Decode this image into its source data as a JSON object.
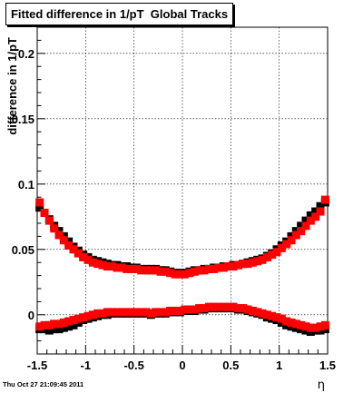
{
  "title": "Fitted difference in 1/pT  Global Tracks",
  "timestamp": "Thu Oct 27 21:09:45 2011",
  "chart_data": {
    "type": "scatter",
    "title": "Fitted difference in 1/pT  Global Tracks",
    "xlabel": "η",
    "ylabel": "difference in 1/pT",
    "xlim": [
      -1.5,
      1.5
    ],
    "ylim": [
      -0.03,
      0.22
    ],
    "x_ticks": [
      -1.5,
      -1,
      -0.5,
      0,
      0.5,
      1,
      1.5
    ],
    "x_tick_labels": [
      "-1.5",
      "-1",
      "-0.5",
      "0",
      "0.5",
      "1",
      "1.5"
    ],
    "y_ticks": [
      0,
      0.05,
      0.1,
      0.15,
      0.2
    ],
    "y_tick_labels": [
      "0",
      "0.05",
      "0.1",
      "0.15",
      "0.2"
    ],
    "grid": true,
    "series": [
      {
        "color": "#000000",
        "x": [
          -1.475,
          -1.425,
          -1.375,
          -1.325,
          -1.275,
          -1.225,
          -1.175,
          -1.125,
          -1.075,
          -1.025,
          -0.975,
          -0.925,
          -0.875,
          -0.825,
          -0.775,
          -0.725,
          -0.675,
          -0.625,
          -0.575,
          -0.525,
          -0.475,
          -0.425,
          -0.375,
          -0.325,
          -0.275,
          -0.225,
          -0.175,
          -0.125,
          -0.075,
          -0.025,
          0.025,
          0.075,
          0.125,
          0.175,
          0.225,
          0.275,
          0.325,
          0.375,
          0.425,
          0.475,
          0.525,
          0.575,
          0.625,
          0.675,
          0.725,
          0.775,
          0.825,
          0.875,
          0.925,
          0.975,
          1.025,
          1.075,
          1.125,
          1.175,
          1.225,
          1.275,
          1.325,
          1.375,
          1.425,
          1.475
        ],
        "values": [
          0.082,
          0.078,
          0.073,
          0.068,
          0.064,
          0.06,
          0.056,
          0.052,
          0.049,
          0.046,
          0.044,
          0.042,
          0.041,
          0.04,
          0.039,
          0.038,
          0.038,
          0.037,
          0.037,
          0.036,
          0.036,
          0.035,
          0.035,
          0.035,
          0.035,
          0.034,
          0.034,
          0.033,
          0.032,
          0.032,
          0.032,
          0.033,
          0.034,
          0.034,
          0.035,
          0.035,
          0.036,
          0.036,
          0.037,
          0.037,
          0.038,
          0.038,
          0.039,
          0.04,
          0.041,
          0.042,
          0.043,
          0.045,
          0.047,
          0.05,
          0.053,
          0.056,
          0.06,
          0.064,
          0.068,
          0.072,
          0.076,
          0.079,
          0.083,
          0.086
        ]
      },
      {
        "color": "#000000",
        "x": [
          -1.475,
          -1.425,
          -1.375,
          -1.325,
          -1.275,
          -1.225,
          -1.175,
          -1.125,
          -1.075,
          -1.025,
          -0.975,
          -0.925,
          -0.875,
          -0.825,
          -0.775,
          -0.725,
          -0.675,
          -0.625,
          -0.575,
          -0.525,
          -0.475,
          -0.425,
          -0.375,
          -0.325,
          -0.275,
          -0.225,
          -0.175,
          -0.125,
          -0.075,
          -0.025,
          0.025,
          0.075,
          0.125,
          0.175,
          0.225,
          0.275,
          0.325,
          0.375,
          0.425,
          0.475,
          0.525,
          0.575,
          0.625,
          0.675,
          0.725,
          0.775,
          0.825,
          0.875,
          0.925,
          0.975,
          1.025,
          1.075,
          1.125,
          1.175,
          1.225,
          1.275,
          1.325,
          1.375,
          1.425,
          1.475
        ],
        "values": [
          -0.011,
          -0.011,
          -0.012,
          -0.011,
          -0.011,
          -0.01,
          -0.009,
          -0.008,
          -0.006,
          -0.004,
          -0.003,
          -0.002,
          -0.001,
          0.0,
          0.0,
          0.001,
          0.001,
          0.001,
          0.001,
          0.001,
          0.001,
          0.001,
          0.001,
          0.0,
          0.001,
          0.001,
          0.001,
          0.002,
          0.002,
          0.002,
          0.003,
          0.003,
          0.003,
          0.004,
          0.004,
          0.005,
          0.005,
          0.005,
          0.005,
          0.005,
          0.005,
          0.004,
          0.004,
          0.003,
          0.002,
          0.001,
          0.0,
          -0.002,
          -0.003,
          -0.004,
          -0.006,
          -0.008,
          -0.009,
          -0.01,
          -0.011,
          -0.012,
          -0.013,
          -0.012,
          -0.012,
          -0.011
        ]
      },
      {
        "color": "#ff0000",
        "x": [
          -1.475,
          -1.425,
          -1.375,
          -1.325,
          -1.275,
          -1.225,
          -1.175,
          -1.125,
          -1.075,
          -1.025,
          -0.975,
          -0.925,
          -0.875,
          -0.825,
          -0.775,
          -0.725,
          -0.675,
          -0.625,
          -0.575,
          -0.525,
          -0.475,
          -0.425,
          -0.375,
          -0.325,
          -0.275,
          -0.225,
          -0.175,
          -0.125,
          -0.075,
          -0.025,
          0.025,
          0.075,
          0.125,
          0.175,
          0.225,
          0.275,
          0.325,
          0.375,
          0.425,
          0.475,
          0.525,
          0.575,
          0.625,
          0.675,
          0.725,
          0.775,
          0.825,
          0.875,
          0.925,
          0.975,
          1.025,
          1.075,
          1.125,
          1.175,
          1.225,
          1.275,
          1.325,
          1.375,
          1.425,
          1.475
        ],
        "values": [
          0.086,
          0.078,
          0.072,
          0.066,
          0.061,
          0.057,
          0.053,
          0.05,
          0.047,
          0.044,
          0.042,
          0.04,
          0.039,
          0.038,
          0.037,
          0.037,
          0.036,
          0.036,
          0.035,
          0.035,
          0.035,
          0.034,
          0.034,
          0.034,
          0.034,
          0.033,
          0.033,
          0.032,
          0.031,
          0.031,
          0.031,
          0.032,
          0.033,
          0.034,
          0.034,
          0.035,
          0.035,
          0.036,
          0.036,
          0.037,
          0.037,
          0.038,
          0.039,
          0.039,
          0.04,
          0.041,
          0.042,
          0.044,
          0.046,
          0.048,
          0.051,
          0.054,
          0.057,
          0.061,
          0.064,
          0.068,
          0.072,
          0.075,
          0.079,
          0.088
        ]
      },
      {
        "color": "#ff0000",
        "x": [
          -1.475,
          -1.425,
          -1.375,
          -1.325,
          -1.275,
          -1.225,
          -1.175,
          -1.125,
          -1.075,
          -1.025,
          -0.975,
          -0.925,
          -0.875,
          -0.825,
          -0.775,
          -0.725,
          -0.675,
          -0.625,
          -0.575,
          -0.525,
          -0.475,
          -0.425,
          -0.375,
          -0.325,
          -0.275,
          -0.225,
          -0.175,
          -0.125,
          -0.075,
          -0.025,
          0.025,
          0.075,
          0.125,
          0.175,
          0.225,
          0.275,
          0.325,
          0.375,
          0.425,
          0.475,
          0.525,
          0.575,
          0.625,
          0.675,
          0.725,
          0.775,
          0.825,
          0.875,
          0.925,
          0.975,
          1.025,
          1.075,
          1.125,
          1.175,
          1.225,
          1.275,
          1.325,
          1.375,
          1.425,
          1.475
        ],
        "values": [
          -0.009,
          -0.008,
          -0.008,
          -0.007,
          -0.007,
          -0.006,
          -0.005,
          -0.004,
          -0.003,
          -0.002,
          -0.001,
          0.0,
          0.001,
          0.001,
          0.002,
          0.002,
          0.002,
          0.002,
          0.002,
          0.002,
          0.002,
          0.002,
          0.002,
          0.001,
          0.002,
          0.002,
          0.002,
          0.003,
          0.003,
          0.003,
          0.004,
          0.004,
          0.004,
          0.005,
          0.005,
          0.006,
          0.006,
          0.006,
          0.006,
          0.006,
          0.006,
          0.005,
          0.005,
          0.004,
          0.003,
          0.002,
          0.001,
          0.0,
          -0.001,
          -0.002,
          -0.003,
          -0.005,
          -0.006,
          -0.007,
          -0.008,
          -0.009,
          -0.01,
          -0.01,
          -0.009,
          -0.008
        ]
      }
    ]
  }
}
